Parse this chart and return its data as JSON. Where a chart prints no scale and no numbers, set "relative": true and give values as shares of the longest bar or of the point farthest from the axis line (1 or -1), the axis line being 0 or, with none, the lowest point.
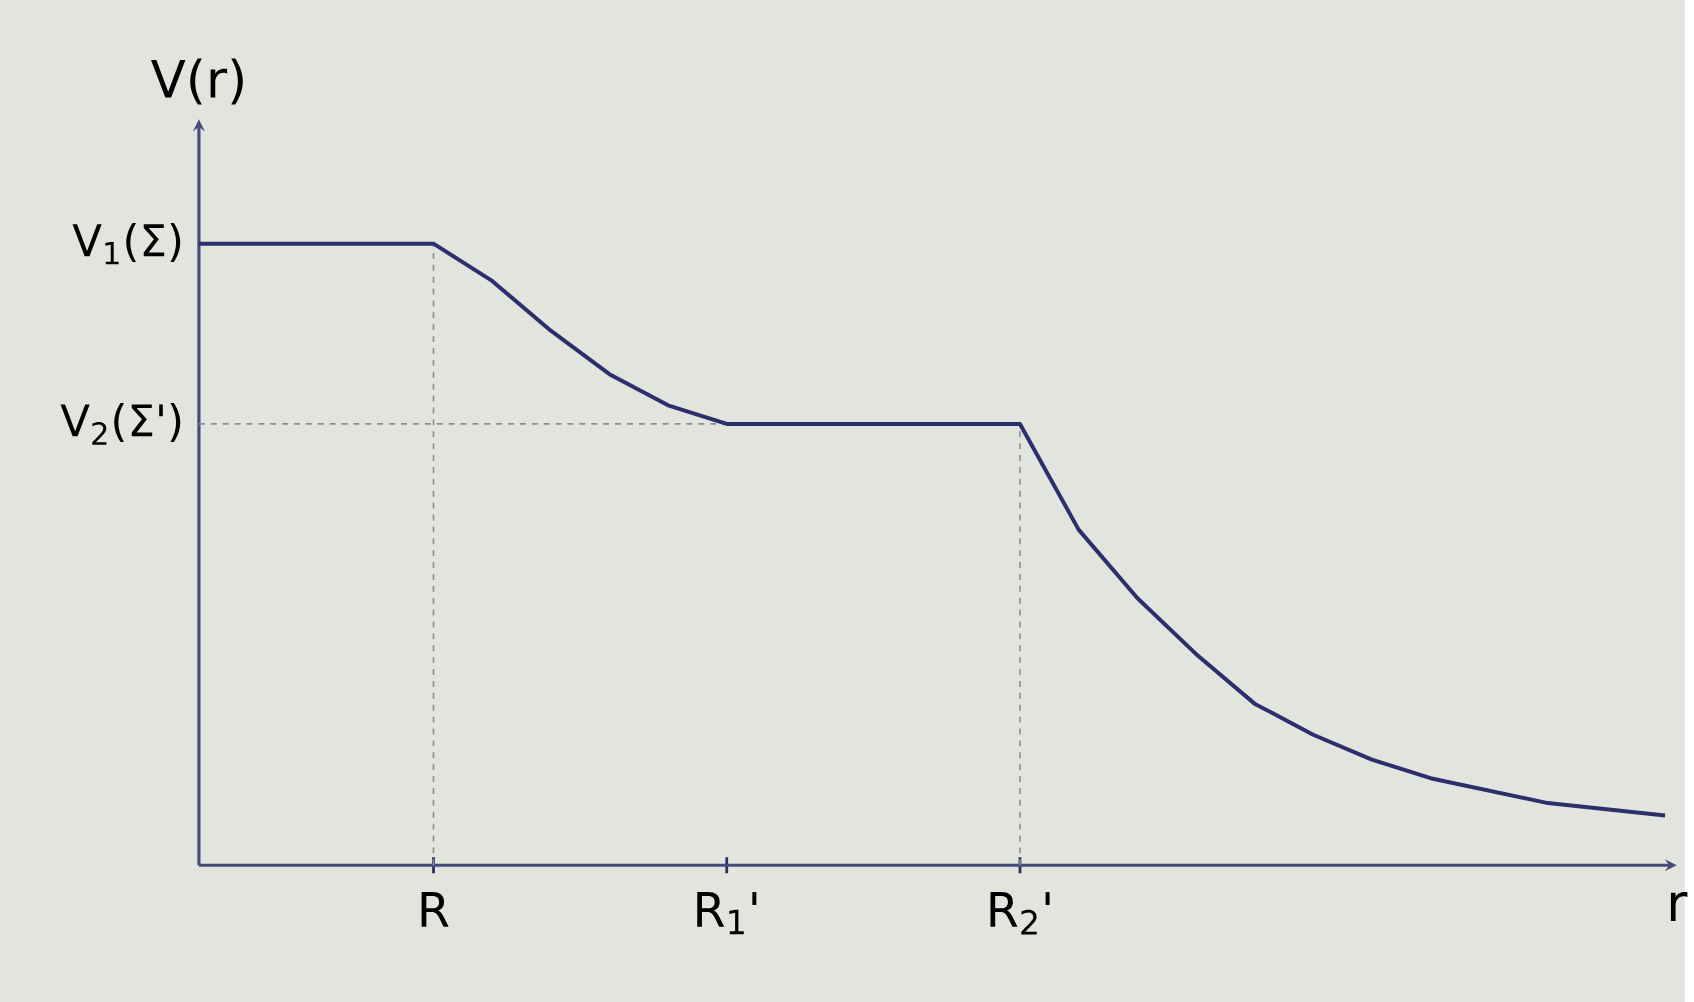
{
  "chart_data": {
    "type": "line",
    "relative": true,
    "xlabel": "r",
    "ylabel": "V(r)",
    "categories": [
      null,
      null,
      null,
      null,
      "R",
      null,
      null,
      null,
      null,
      "R$_{1}$'",
      null,
      null,
      null,
      null,
      "R$_{2}$'",
      null,
      null,
      null,
      null,
      null,
      null,
      null,
      null,
      null,
      null,
      null
    ],
    "series": [
      {
        "color": "#2b2f6b",
        "values": [
          1,
          1,
          1,
          1,
          1,
          0.94,
          0.86,
          0.79,
          0.74,
          0.71,
          0.71,
          0.71,
          0.71,
          0.71,
          0.71,
          0.54,
          0.43,
          0.34,
          0.26,
          0.21,
          0.17,
          0.14,
          0.12,
          0.1,
          0.09,
          0.08
        ]
      }
    ],
    "marker": "none",
    "line_style": "solid",
    "annotations": [
      "V$_{1}$(Σ)"
    ],
    "ref_lines": [
      {
        "axis": "x",
        "value": "R",
        "color": "#8a8f96",
        "line_style": "dashed"
      },
      {
        "axis": "x",
        "value": "R$_{2}$'",
        "color": "#8a8f96",
        "line_style": "dashed"
      },
      {
        "axis": "y",
        "value": 0.71,
        "label": "V$_{2}$(Σ')",
        "color": "#8a8f96",
        "line_style": "dashed"
      }
    ]
  }
}
